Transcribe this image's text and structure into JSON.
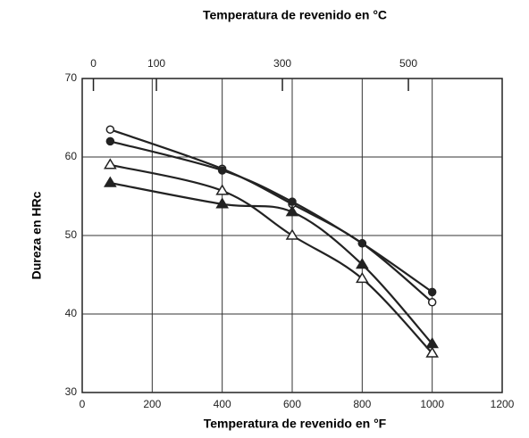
{
  "chart_data": {
    "type": "line",
    "title": "Temperatura de revenido en °C",
    "xlabel": "Temperatura de revenido en °F",
    "ylabel": "Dureza en HRc",
    "series": [
      {
        "marker": "open-circle",
        "color": "#222222",
        "x": [
          80,
          400,
          600,
          800,
          1000
        ],
        "values": [
          63.5,
          58.5,
          54,
          49,
          41.5
        ]
      },
      {
        "marker": "filled-circle",
        "color": "#222222",
        "x": [
          80,
          400,
          600,
          800,
          1000
        ],
        "values": [
          62,
          58.3,
          54.3,
          49,
          42.8
        ]
      },
      {
        "marker": "open-triangle",
        "color": "#222222",
        "x": [
          80,
          400,
          600,
          800,
          1000
        ],
        "values": [
          59,
          55.7,
          50,
          44.5,
          35
        ]
      },
      {
        "marker": "filled-triangle",
        "color": "#222222",
        "x": [
          80,
          400,
          600,
          800,
          1000
        ],
        "values": [
          56.7,
          54,
          53,
          46.3,
          36.2
        ]
      }
    ],
    "xlim": [
      0,
      1200
    ],
    "xticks": [
      0,
      200,
      400,
      600,
      800,
      1000,
      1200
    ],
    "x2lim": [
      -17.8,
      648.9
    ],
    "x2ticks": [
      0,
      100,
      300,
      500
    ],
    "ylim": [
      30,
      70
    ],
    "yticks": [
      30,
      40,
      50,
      60,
      70
    ],
    "grid": true
  }
}
